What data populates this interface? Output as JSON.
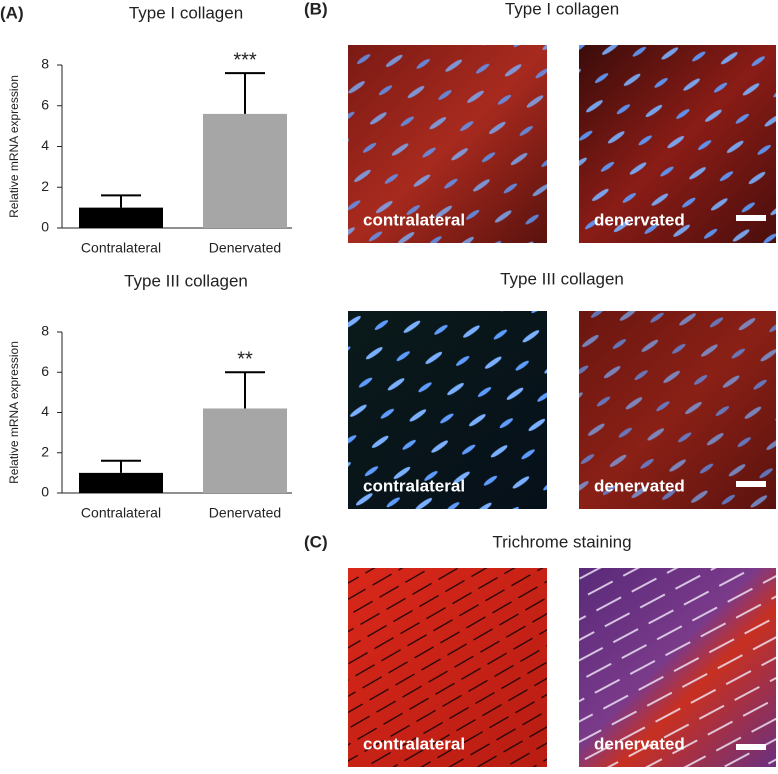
{
  "chart_data": [
    {
      "type": "bar",
      "panel_label": "(A)",
      "title": "Type I collagen",
      "y_label": "Relative mRNA expression",
      "categories": [
        "Contralateral",
        "Denervated"
      ],
      "values": [
        1.0,
        5.6
      ],
      "errors": [
        0.6,
        2.0
      ],
      "significance": [
        null,
        "***"
      ],
      "colors": [
        "#000000",
        "#a6a6a6"
      ],
      "ylim": [
        0,
        8
      ],
      "yticks": [
        0,
        2,
        4,
        6,
        8
      ]
    },
    {
      "type": "bar",
      "title": "Type III collagen",
      "y_label": "Relative mRNA expression",
      "categories": [
        "Contralateral",
        "Denervated"
      ],
      "values": [
        1.0,
        4.2
      ],
      "errors": [
        0.6,
        1.8
      ],
      "significance": [
        null,
        "**"
      ],
      "colors": [
        "#000000",
        "#a6a6a6"
      ],
      "ylim": [
        0,
        8
      ],
      "yticks": [
        0,
        2,
        4,
        6,
        8
      ]
    }
  ],
  "images": [
    {
      "label": "(B)",
      "title": "Type I collagen",
      "captions": [
        "contralateral",
        "denervated"
      ]
    },
    {
      "title": "Type III collagen",
      "captions": [
        "contralateral",
        "denervated"
      ]
    },
    {
      "label": "(C)",
      "title": "Trichrome staining",
      "captions": [
        "contralateral",
        "denervated"
      ]
    }
  ]
}
